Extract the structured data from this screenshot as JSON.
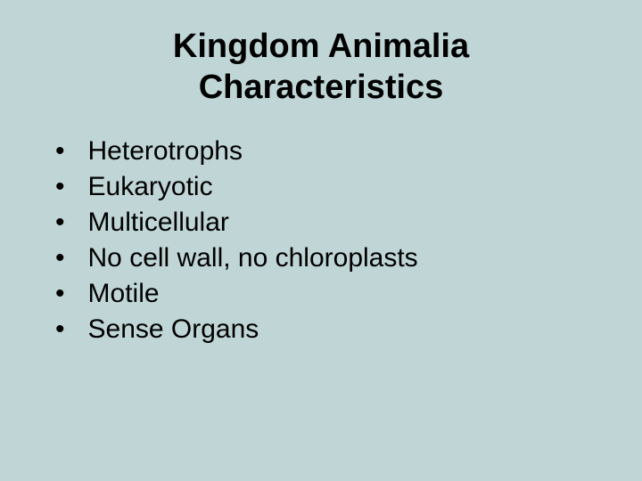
{
  "slide": {
    "background_color": "#c0d6d6",
    "text_color": "#000000",
    "font_family": "Arial, sans-serif",
    "title": {
      "line1": "Kingdom Animalia",
      "line2": "Characteristics",
      "fontsize": 38,
      "align": "center"
    },
    "bullets": {
      "fontsize": 30,
      "marker": "•",
      "items": [
        "Heterotrophs",
        "Eukaryotic",
        "Multicellular",
        "No cell wall, no chloroplasts",
        "Motile",
        "Sense Organs"
      ]
    }
  }
}
